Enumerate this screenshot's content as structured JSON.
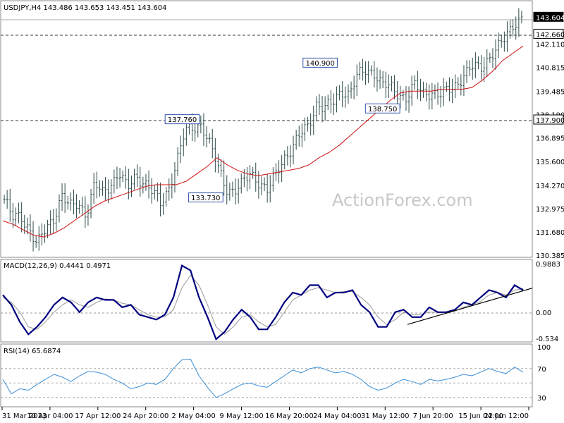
{
  "header": {
    "symbol_line": "USDJPY,H4  143.486 143.653 143.451 143.604",
    "macd_label": "MACD(12,26,9) 0.4441 0.4971",
    "rsi_label": "RSI(14) 65.6874"
  },
  "watermark": "ActionForex.com",
  "colors": {
    "price_bars": "#2e4a4a",
    "ma_line": "#d01010",
    "macd_line": "#000080",
    "macd_signal": "#999999",
    "rsi_line": "#3b8fd6",
    "grid": "#888888"
  },
  "chart_data": [
    {
      "type": "ohlc",
      "name": "price",
      "ylim": [
        130.385,
        144.4
      ],
      "y_ticks": [
        "143.604",
        "142.660",
        "142.110",
        "140.815",
        "139.485",
        "138.190",
        "137.900",
        "136.895",
        "135.600",
        "134.270",
        "132.975",
        "131.680",
        "130.385"
      ],
      "current_price": 143.604,
      "horizontal_lines": [
        142.66,
        137.9
      ],
      "annotations": [
        {
          "label": "137.760",
          "value": 137.76
        },
        {
          "label": "133.730",
          "value": 133.73
        },
        {
          "label": "140.900",
          "value": 140.9
        },
        {
          "label": "138.750",
          "value": 138.75
        }
      ],
      "x_labels": [
        "31 Mar 2023",
        "10 Apr 04:00",
        "17 Apr 12:00",
        "24 Apr 20:00",
        "2 May 04:00",
        "9 May 12:00",
        "16 May 20:00",
        "24 May 04:00",
        "31 May 12:00",
        "7 Jun 20:00",
        "15 Jun 04:00",
        "22 Jun 12:00"
      ],
      "close_path": [
        133.5,
        132.4,
        132.6,
        131.9,
        130.9,
        131.8,
        132.5,
        133.7,
        133.0,
        133.3,
        132.7,
        134.3,
        133.8,
        134.4,
        135.0,
        134.0,
        134.8,
        134.5,
        133.9,
        133.2,
        134.1,
        135.6,
        137.2,
        137.5,
        137.7,
        136.5,
        135.3,
        134.2,
        133.9,
        134.3,
        135.0,
        134.5,
        133.9,
        134.8,
        135.8,
        136.3,
        137.0,
        137.6,
        138.8,
        138.5,
        138.8,
        139.6,
        139.3,
        140.3,
        140.7,
        140.6,
        139.8,
        139.7,
        139.4,
        139.1,
        139.8,
        139.4,
        139.5,
        139.2,
        139.5,
        139.9,
        140.4,
        140.8,
        140.8,
        141.4,
        141.8,
        142.4,
        143.3,
        143.6
      ],
      "ma_path": [
        132.3,
        132.1,
        131.8,
        131.5,
        131.4,
        131.6,
        131.9,
        132.3,
        132.7,
        133.1,
        133.4,
        133.6,
        133.8,
        134.0,
        134.2,
        134.3,
        134.3,
        134.3,
        134.5,
        134.9,
        135.3,
        135.8,
        135.4,
        135.1,
        134.9,
        134.8,
        134.9,
        135.0,
        135.1,
        135.2,
        135.4,
        135.8,
        136.1,
        136.5,
        137.0,
        137.5,
        138.0,
        138.5,
        139.0,
        139.4,
        139.5,
        139.5,
        139.5,
        139.6,
        139.6,
        139.6,
        139.7,
        140.1,
        140.6,
        141.2,
        141.6,
        142.0
      ],
      "ma_name": ""
    },
    {
      "type": "line",
      "name": "MACD(12,26,9)",
      "ylim": [
        -0.534,
        0.9883
      ],
      "y_ticks": [
        "0.9883",
        "0.00",
        "-0.534"
      ],
      "macd": [
        0.35,
        0.15,
        -0.2,
        -0.45,
        -0.3,
        -0.1,
        0.15,
        0.3,
        0.2,
        0.0,
        0.2,
        0.3,
        0.25,
        0.25,
        0.1,
        0.15,
        -0.05,
        -0.1,
        -0.15,
        -0.05,
        0.3,
        0.95,
        0.85,
        0.3,
        -0.1,
        -0.55,
        -0.4,
        -0.15,
        0.05,
        -0.1,
        -0.35,
        -0.35,
        -0.1,
        0.2,
        0.4,
        0.35,
        0.55,
        0.55,
        0.3,
        0.4,
        0.4,
        0.45,
        0.15,
        0.0,
        -0.3,
        -0.3,
        0.0,
        0.05,
        -0.1,
        -0.1,
        0.1,
        0.0,
        0.0,
        0.05,
        0.2,
        0.15,
        0.3,
        0.45,
        0.4,
        0.3,
        0.55,
        0.45
      ],
      "signal": [
        0.3,
        0.2,
        0.0,
        -0.3,
        -0.35,
        -0.2,
        0.0,
        0.15,
        0.25,
        0.15,
        0.1,
        0.2,
        0.27,
        0.25,
        0.18,
        0.15,
        0.05,
        -0.05,
        -0.1,
        -0.1,
        0.05,
        0.5,
        0.75,
        0.55,
        0.15,
        -0.3,
        -0.45,
        -0.3,
        -0.1,
        -0.05,
        -0.2,
        -0.3,
        -0.25,
        0.0,
        0.25,
        0.35,
        0.45,
        0.5,
        0.45,
        0.4,
        0.42,
        0.42,
        0.3,
        0.15,
        -0.1,
        -0.25,
        -0.15,
        0.0,
        -0.05,
        -0.05,
        0.0,
        0.0,
        0.0,
        0.02,
        0.1,
        0.15,
        0.22,
        0.35,
        0.4,
        0.35,
        0.45,
        0.48
      ],
      "trendline": [
        -0.25,
        0.49
      ]
    },
    {
      "type": "line",
      "name": "RSI(14)",
      "ylim": [
        20,
        100
      ],
      "y_ticks": [
        "100",
        "70",
        "30"
      ],
      "guide_levels": [
        70,
        50,
        30
      ],
      "values": [
        55,
        35,
        42,
        40,
        48,
        55,
        62,
        58,
        52,
        60,
        66,
        65,
        62,
        55,
        50,
        42,
        45,
        50,
        48,
        55,
        70,
        82,
        83,
        60,
        44,
        30,
        35,
        42,
        48,
        50,
        46,
        44,
        52,
        60,
        68,
        64,
        70,
        72,
        68,
        64,
        66,
        62,
        55,
        45,
        40,
        43,
        50,
        55,
        52,
        48,
        55,
        53,
        55,
        58,
        62,
        60,
        65,
        70,
        66,
        63,
        72,
        65
      ]
    }
  ]
}
